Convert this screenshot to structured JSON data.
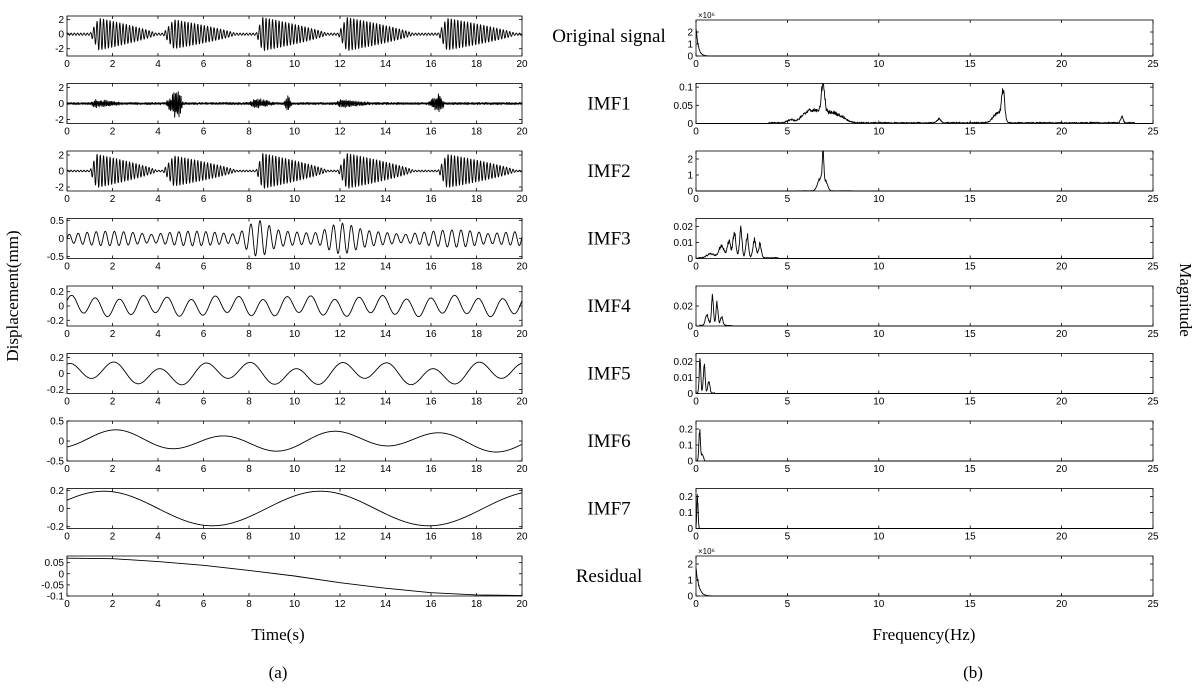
{
  "figure": {
    "left_panel_label": "(a)",
    "right_panel_label": "(b)",
    "time_axis_title": "Time(s)",
    "displacement_axis_title": "Displacement(mm)",
    "frequency_axis_title": "Frequency(Hz)",
    "magnitude_axis_title": "Magnitude"
  },
  "row_labels": [
    "Original signal",
    "IMF1",
    "IMF2",
    "IMF3",
    "IMF4",
    "IMF5",
    "IMF6",
    "IMF7",
    "Residual"
  ],
  "chart_data": [
    {
      "type": "line",
      "panel": "(a)",
      "xlabel": "Time(s)",
      "ylabel": "Displacement(mm)",
      "xlim": [
        0,
        20
      ],
      "x_ticks": [
        0,
        2,
        4,
        6,
        8,
        10,
        12,
        14,
        16,
        18,
        20
      ],
      "series": [
        {
          "row": "Original signal",
          "ylim": [
            -3,
            2.5
          ],
          "y_ticks": [
            -2,
            0,
            2
          ],
          "waveform": {
            "kind": "bursts",
            "freq_hz": 7,
            "baseline_amp": 0.15,
            "bursts": [
              {
                "start": 1.0,
                "peak": 1.4,
                "end": 4.0,
                "amp": 2.2
              },
              {
                "start": 4.2,
                "peak": 4.7,
                "end": 7.5,
                "amp": 2.0
              },
              {
                "start": 8.3,
                "peak": 8.6,
                "end": 11.5,
                "amp": 2.3
              },
              {
                "start": 11.9,
                "peak": 12.3,
                "end": 15.3,
                "amp": 2.3
              },
              {
                "start": 16.3,
                "peak": 16.7,
                "end": 19.8,
                "amp": 2.2
              }
            ]
          }
        },
        {
          "row": "IMF1",
          "ylim": [
            -2.5,
            2.5
          ],
          "y_ticks": [
            -2,
            0,
            2
          ],
          "waveform": {
            "kind": "spiky",
            "freq_hz": 16,
            "baseline_amp": 0.15,
            "bursts": [
              {
                "start": 1.0,
                "peak": 1.2,
                "end": 2.8,
                "amp": 0.6
              },
              {
                "start": 4.3,
                "peak": 4.85,
                "end": 5.1,
                "amp": 2.3
              },
              {
                "start": 7.9,
                "peak": 8.3,
                "end": 9.3,
                "amp": 0.7
              },
              {
                "start": 9.5,
                "peak": 9.7,
                "end": 9.9,
                "amp": 1.1
              },
              {
                "start": 11.8,
                "peak": 12.0,
                "end": 13.6,
                "amp": 0.6
              },
              {
                "start": 15.8,
                "peak": 16.4,
                "end": 16.6,
                "amp": 1.4
              }
            ]
          }
        },
        {
          "row": "IMF2",
          "ylim": [
            -2.5,
            2.5
          ],
          "y_ticks": [
            -2,
            0,
            2
          ],
          "waveform": {
            "kind": "bursts",
            "freq_hz": 7,
            "baseline_amp": 0.1,
            "bursts": [
              {
                "start": 1.0,
                "peak": 1.3,
                "end": 4.0,
                "amp": 2.1
              },
              {
                "start": 4.2,
                "peak": 4.7,
                "end": 7.5,
                "amp": 1.9
              },
              {
                "start": 8.3,
                "peak": 8.6,
                "end": 11.5,
                "amp": 2.2
              },
              {
                "start": 11.9,
                "peak": 12.3,
                "end": 15.3,
                "amp": 2.2
              },
              {
                "start": 16.3,
                "peak": 16.7,
                "end": 19.8,
                "amp": 2.1
              }
            ]
          }
        },
        {
          "row": "IMF3",
          "ylim": [
            -0.55,
            0.55
          ],
          "y_ticks": [
            -0.5,
            0,
            0.5
          ],
          "waveform": {
            "kind": "modulated",
            "freq_hz": 2.5,
            "base_amp": 0.2,
            "bursts": [
              {
                "center": 8.4,
                "width": 0.6,
                "amp": 0.32
              },
              {
                "center": 12.0,
                "width": 0.8,
                "amp": 0.25
              },
              {
                "center": 17.5,
                "width": 1.2,
                "amp": 0.05
              }
            ]
          }
        },
        {
          "row": "IMF4",
          "ylim": [
            -0.28,
            0.28
          ],
          "y_ticks": [
            -0.2,
            0,
            0.2
          ],
          "waveform": {
            "kind": "sine",
            "components": [
              {
                "amp": 0.12,
                "freq_hz": 0.95,
                "phase": 0.4
              },
              {
                "amp": 0.03,
                "freq_hz": 0.3,
                "phase": 1.0
              }
            ]
          }
        },
        {
          "row": "IMF5",
          "ylim": [
            -0.25,
            0.25
          ],
          "y_ticks": [
            -0.2,
            0,
            0.2
          ],
          "waveform": {
            "kind": "sine",
            "components": [
              {
                "amp": 0.11,
                "freq_hz": 0.5,
                "phase": 1.3
              },
              {
                "amp": 0.05,
                "freq_hz": 0.17,
                "phase": 0.2
              }
            ]
          }
        },
        {
          "row": "IMF6",
          "ylim": [
            -0.5,
            0.5
          ],
          "y_ticks": [
            -0.5,
            0,
            0.5
          ],
          "waveform": {
            "kind": "sine",
            "components": [
              {
                "amp": 0.2,
                "freq_hz": 0.21,
                "phase": 5.0
              },
              {
                "amp": 0.08,
                "freq_hz": 0.085,
                "phase": 0.6
              }
            ]
          }
        },
        {
          "row": "IMF7",
          "ylim": [
            -0.22,
            0.22
          ],
          "y_ticks": [
            -0.2,
            0,
            0.2
          ],
          "waveform": {
            "kind": "sine",
            "components": [
              {
                "amp": 0.19,
                "freq_hz": 0.105,
                "phase": 0.5
              }
            ]
          }
        },
        {
          "row": "Residual",
          "ylim": [
            -0.1,
            0.08
          ],
          "y_ticks": [
            -0.1,
            -0.05,
            0,
            0.05
          ],
          "waveform": {
            "kind": "polyline",
            "points": [
              [
                0,
                0.07
              ],
              [
                2,
                0.068
              ],
              [
                4,
                0.055
              ],
              [
                6,
                0.038
              ],
              [
                8,
                0.015
              ],
              [
                10,
                -0.01
              ],
              [
                12,
                -0.04
              ],
              [
                14,
                -0.065
              ],
              [
                16,
                -0.085
              ],
              [
                18,
                -0.095
              ],
              [
                20,
                -0.098
              ]
            ]
          }
        }
      ]
    },
    {
      "type": "line",
      "panel": "(b)",
      "xlabel": "Frequency(Hz)",
      "ylabel": "Magnitude",
      "xlim": [
        0,
        25
      ],
      "x_ticks": [
        0,
        5,
        10,
        15,
        20,
        25
      ],
      "series": [
        {
          "row": "Original signal",
          "ylim": [
            0,
            3
          ],
          "y_ticks": [
            0,
            1,
            2
          ],
          "exponent": "×10⁶",
          "spectrum": {
            "kind": "decay",
            "start_value": 2.7,
            "decay_hz": 0.12
          }
        },
        {
          "row": "IMF1",
          "ylim": [
            0,
            0.11
          ],
          "y_ticks": [
            0,
            0.05,
            0.1
          ],
          "spectrum": {
            "kind": "peaks",
            "noise": 0.004,
            "noise_range": [
              4.0,
              24.0
            ],
            "peaks": [
              {
                "f": 5.2,
                "width": 0.25,
                "amp": 0.01
              },
              {
                "f": 6.0,
                "width": 0.4,
                "amp": 0.025
              },
              {
                "f": 6.95,
                "width": 0.12,
                "amp": 0.1
              },
              {
                "f": 6.6,
                "width": 0.5,
                "amp": 0.035
              },
              {
                "f": 7.4,
                "width": 0.5,
                "amp": 0.03
              },
              {
                "f": 8.0,
                "width": 0.4,
                "amp": 0.012
              },
              {
                "f": 13.3,
                "width": 0.15,
                "amp": 0.012
              },
              {
                "f": 16.8,
                "width": 0.12,
                "amp": 0.085
              },
              {
                "f": 16.5,
                "width": 0.35,
                "amp": 0.03
              },
              {
                "f": 23.3,
                "width": 0.1,
                "amp": 0.02
              }
            ]
          }
        },
        {
          "row": "IMF2",
          "ylim": [
            0,
            2.5
          ],
          "y_ticks": [
            0,
            1,
            2
          ],
          "spectrum": {
            "kind": "peaks",
            "noise": 0.02,
            "noise_range": [
              5.5,
              8.5
            ],
            "peaks": [
              {
                "f": 6.95,
                "width": 0.06,
                "amp": 2.4
              },
              {
                "f": 6.8,
                "width": 0.2,
                "amp": 0.9
              },
              {
                "f": 7.1,
                "width": 0.15,
                "amp": 0.6
              }
            ]
          }
        },
        {
          "row": "IMF3",
          "ylim": [
            0,
            0.025
          ],
          "y_ticks": [
            0,
            0.01,
            0.02
          ],
          "spectrum": {
            "kind": "peaks",
            "noise": 0.0008,
            "noise_range": [
              0.1,
              4.5
            ],
            "peaks": [
              {
                "f": 0.8,
                "width": 0.3,
                "amp": 0.003
              },
              {
                "f": 1.4,
                "width": 0.2,
                "amp": 0.009
              },
              {
                "f": 1.8,
                "width": 0.12,
                "amp": 0.012
              },
              {
                "f": 2.1,
                "width": 0.12,
                "amp": 0.018
              },
              {
                "f": 2.45,
                "width": 0.1,
                "amp": 0.02
              },
              {
                "f": 2.8,
                "width": 0.1,
                "amp": 0.016
              },
              {
                "f": 3.2,
                "width": 0.12,
                "amp": 0.013
              },
              {
                "f": 3.5,
                "width": 0.1,
                "amp": 0.01
              }
            ]
          }
        },
        {
          "row": "IMF4",
          "ylim": [
            0,
            0.04
          ],
          "y_ticks": [
            0,
            0.02
          ],
          "spectrum": {
            "kind": "peaks",
            "noise": 0.001,
            "noise_range": [
              0.2,
              2.0
            ],
            "peaks": [
              {
                "f": 0.6,
                "width": 0.12,
                "amp": 0.012
              },
              {
                "f": 0.9,
                "width": 0.08,
                "amp": 0.032
              },
              {
                "f": 1.15,
                "width": 0.08,
                "amp": 0.025
              },
              {
                "f": 1.4,
                "width": 0.1,
                "amp": 0.01
              }
            ]
          }
        },
        {
          "row": "IMF5",
          "ylim": [
            0,
            0.025
          ],
          "y_ticks": [
            0,
            0.01,
            0.02
          ],
          "spectrum": {
            "kind": "peaks",
            "noise": 0.0008,
            "noise_range": [
              0.05,
              1.0
            ],
            "peaks": [
              {
                "f": 0.22,
                "width": 0.06,
                "amp": 0.024
              },
              {
                "f": 0.45,
                "width": 0.07,
                "amp": 0.02
              },
              {
                "f": 0.7,
                "width": 0.08,
                "amp": 0.008
              }
            ]
          }
        },
        {
          "row": "IMF6",
          "ylim": [
            0,
            0.25
          ],
          "y_ticks": [
            0,
            0.1,
            0.2
          ],
          "spectrum": {
            "kind": "peaks",
            "noise": 0.0,
            "noise_range": [
              0,
              0
            ],
            "peaks": [
              {
                "f": 0.2,
                "width": 0.06,
                "amp": 0.22
              },
              {
                "f": 0.35,
                "width": 0.08,
                "amp": 0.05
              }
            ]
          }
        },
        {
          "row": "IMF7",
          "ylim": [
            0,
            0.25
          ],
          "y_ticks": [
            0,
            0.1,
            0.2
          ],
          "spectrum": {
            "kind": "peaks",
            "noise": 0.0,
            "noise_range": [
              0,
              0
            ],
            "peaks": [
              {
                "f": 0.08,
                "width": 0.05,
                "amp": 0.22
              }
            ]
          }
        },
        {
          "row": "Residual",
          "ylim": [
            0,
            2.5
          ],
          "y_ticks": [
            0,
            1,
            2
          ],
          "exponent": "×10⁶",
          "spectrum": {
            "kind": "decay",
            "start_value": 2.0,
            "decay_hz": 0.15
          }
        }
      ]
    }
  ]
}
